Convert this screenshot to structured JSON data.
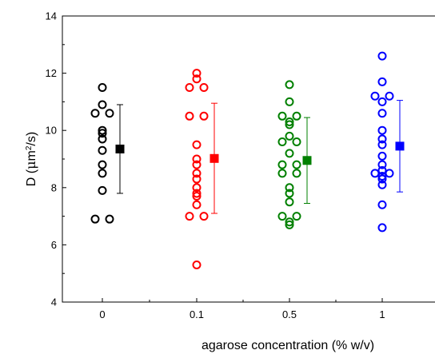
{
  "chart_data": {
    "type": "scatter",
    "xlabel": "agarose concentration (% w/v)",
    "ylabel_prefix": "D (",
    "ylabel_mu": "μ",
    "ylabel_unit": "m",
    "ylabel_exp": "2",
    "ylabel_suffix": "/s)",
    "categories": [
      "0",
      "0.1",
      "0.5",
      "1"
    ],
    "ylim": [
      4,
      14
    ],
    "yticks": [
      4,
      6,
      8,
      10,
      12,
      14
    ],
    "grid": false,
    "series": [
      {
        "category": "0",
        "color": "#000000",
        "points": [
          11.5,
          10.9,
          10.6,
          10.6,
          10.0,
          9.9,
          9.7,
          9.3,
          8.8,
          8.5,
          7.9,
          6.9,
          6.9
        ],
        "mean": 9.35,
        "err_high": 10.9,
        "err_low": 7.8
      },
      {
        "category": "0.1",
        "color": "#ff0000",
        "points": [
          12.0,
          11.8,
          11.5,
          11.5,
          10.5,
          10.5,
          9.5,
          9.0,
          8.8,
          8.5,
          8.3,
          8.0,
          7.8,
          7.7,
          7.4,
          7.0,
          7.0,
          5.3
        ],
        "mean": 9.02,
        "err_high": 10.95,
        "err_low": 7.1
      },
      {
        "category": "0.5",
        "color": "#008000",
        "points": [
          11.6,
          11.0,
          10.5,
          10.5,
          10.3,
          10.2,
          9.8,
          9.6,
          9.6,
          9.2,
          8.8,
          8.8,
          8.5,
          8.5,
          8.0,
          7.8,
          7.5,
          7.0,
          7.0,
          6.8,
          6.7
        ],
        "mean": 8.95,
        "err_high": 10.45,
        "err_low": 7.45
      },
      {
        "category": "1",
        "color": "#0000ff",
        "points": [
          12.6,
          11.7,
          11.2,
          11.2,
          11.0,
          10.6,
          10.0,
          9.7,
          9.5,
          9.1,
          8.8,
          8.6,
          8.5,
          8.5,
          8.4,
          8.3,
          8.1,
          7.4,
          6.6
        ],
        "mean": 9.45,
        "err_high": 11.05,
        "err_low": 7.85
      }
    ]
  }
}
